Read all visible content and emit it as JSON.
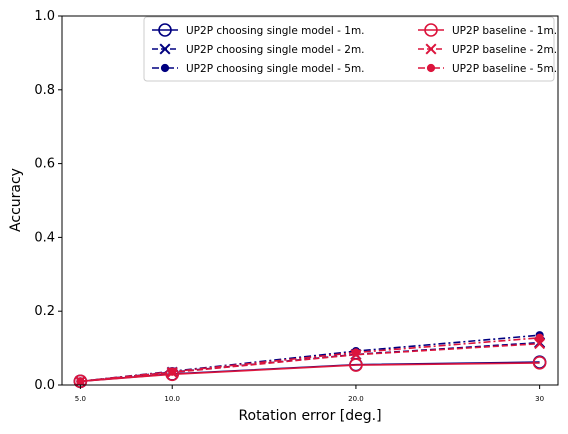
{
  "chart_data": {
    "type": "line",
    "title": "",
    "xlabel": "Rotation error [deg.]",
    "ylabel": "Accuracy",
    "ylim": [
      0,
      1.0
    ],
    "categories": [
      "5.0",
      "10.0",
      "20.0",
      "30"
    ],
    "x": [
      5,
      10,
      20,
      30
    ],
    "yticks": [
      "0.0",
      "0.2",
      "0.4",
      "0.6",
      "0.8",
      "1.0"
    ],
    "grid": false,
    "legend_position": "top-right",
    "series": [
      {
        "name": "UP2P choosing single model - 1m.",
        "values": [
          0.01,
          0.03,
          0.055,
          0.062
        ],
        "color": "#000080",
        "linestyle": "solid",
        "marker": "open-circle"
      },
      {
        "name": "UP2P choosing single model - 2m.",
        "values": [
          0.01,
          0.035,
          0.083,
          0.115
        ],
        "color": "#000080",
        "linestyle": "dashed",
        "marker": "x"
      },
      {
        "name": "UP2P choosing single model - 5m.",
        "values": [
          0.01,
          0.037,
          0.092,
          0.135
        ],
        "color": "#000080",
        "linestyle": "dashdot",
        "marker": "filled-circle"
      },
      {
        "name": "UP2P baseline - 1m.",
        "values": [
          0.01,
          0.029,
          0.054,
          0.06
        ],
        "color": "#dc143c",
        "linestyle": "solid",
        "marker": "open-circle"
      },
      {
        "name": "UP2P baseline - 2m.",
        "values": [
          0.01,
          0.034,
          0.082,
          0.112
        ],
        "color": "#dc143c",
        "linestyle": "dashed",
        "marker": "x"
      },
      {
        "name": "UP2P baseline - 5m.",
        "values": [
          0.01,
          0.036,
          0.088,
          0.128
        ],
        "color": "#dc143c",
        "linestyle": "dashdot",
        "marker": "filled-circle"
      }
    ]
  }
}
